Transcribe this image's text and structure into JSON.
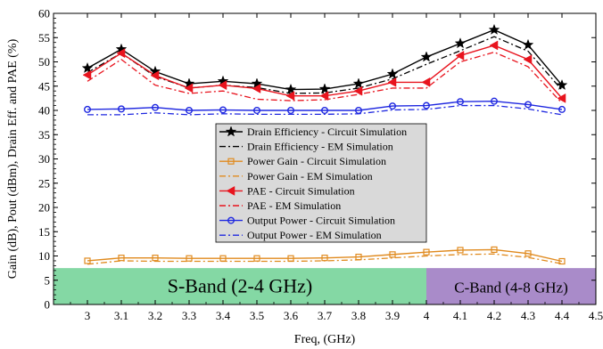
{
  "chart_data": {
    "type": "line",
    "title": "",
    "xlabel": "Freq, (GHz)",
    "ylabel": "Gain (dB), Pout (dBm), Drain Eff. and PAE (%)",
    "xlim": [
      2.9,
      4.5
    ],
    "ylim": [
      0,
      60
    ],
    "x_ticks": [
      "3",
      "3.1",
      "3.2",
      "3.3",
      "3.4",
      "3.5",
      "3.6",
      "3.7",
      "3.8",
      "3.9",
      "4",
      "4.1",
      "4.2",
      "4.3",
      "4.4",
      "4.5"
    ],
    "y_ticks": [
      "0",
      "5",
      "10",
      "15",
      "20",
      "25",
      "30",
      "35",
      "40",
      "45",
      "50",
      "55",
      "60"
    ],
    "grid": false,
    "legend_position": "center",
    "x": [
      3.0,
      3.1,
      3.2,
      3.3,
      3.4,
      3.5,
      3.6,
      3.7,
      3.8,
      3.9,
      4.0,
      4.1,
      4.2,
      4.3,
      4.4
    ],
    "series": [
      {
        "name": "Drain Efficiency - Circuit Simulation",
        "color": "#000000",
        "dash": "solid",
        "marker": "star",
        "values": [
          48.7,
          52.6,
          48.0,
          45.5,
          46.0,
          45.5,
          44.3,
          44.4,
          45.5,
          47.5,
          51.0,
          53.8,
          56.6,
          53.5,
          45.2
        ]
      },
      {
        "name": "Drain Efficiency - EM Simulation",
        "color": "#000000",
        "dash": "dashdot",
        "marker": "none",
        "values": [
          47.8,
          51.8,
          47.0,
          44.6,
          45.2,
          44.7,
          43.5,
          43.6,
          44.6,
          46.5,
          49.5,
          52.3,
          55.2,
          52.2,
          44.2
        ]
      },
      {
        "name": "Power Gain - Circuit Simulation",
        "color": "#e08a1e",
        "dash": "solid",
        "marker": "square",
        "values": [
          9.0,
          9.6,
          9.6,
          9.5,
          9.5,
          9.5,
          9.5,
          9.6,
          9.8,
          10.3,
          10.8,
          11.2,
          11.3,
          10.5,
          8.9
        ]
      },
      {
        "name": "Power Gain - EM Simulation",
        "color": "#e08a1e",
        "dash": "dashdot",
        "marker": "none",
        "values": [
          8.3,
          9.0,
          8.9,
          8.9,
          8.9,
          8.9,
          8.9,
          9.0,
          9.2,
          9.6,
          10.0,
          10.3,
          10.4,
          9.7,
          8.4
        ]
      },
      {
        "name": "PAE - Circuit Simulation",
        "color": "#e8141e",
        "dash": "solid",
        "marker": "triangle-left",
        "values": [
          47.3,
          51.8,
          47.2,
          44.6,
          45.2,
          44.5,
          43.0,
          43.0,
          44.0,
          45.8,
          45.8,
          51.3,
          53.4,
          50.5,
          42.5
        ]
      },
      {
        "name": "PAE - EM Simulation",
        "color": "#e8141e",
        "dash": "dashdot",
        "marker": "none",
        "values": [
          46.0,
          50.5,
          45.2,
          43.5,
          44.0,
          42.3,
          42.0,
          42.2,
          43.3,
          44.6,
          44.6,
          50.0,
          52.0,
          49.0,
          41.5
        ]
      },
      {
        "name": "Output Power - Circuit Simulation",
        "color": "#1f28e0",
        "dash": "solid",
        "marker": "circle",
        "values": [
          40.2,
          40.3,
          40.6,
          40.0,
          40.1,
          40.0,
          40.0,
          40.0,
          40.0,
          40.9,
          41.0,
          41.8,
          41.9,
          41.2,
          40.2
        ]
      },
      {
        "name": "Output Power - EM Simulation",
        "color": "#1f28e0",
        "dash": "dashdot",
        "marker": "none",
        "values": [
          39.1,
          39.1,
          39.5,
          39.1,
          39.3,
          39.2,
          39.2,
          39.2,
          39.3,
          40.1,
          40.2,
          41.0,
          41.0,
          40.3,
          39.1
        ]
      }
    ],
    "annotations": [
      {
        "text": "S-Band (2-4 GHz)",
        "x_range": [
          2.9,
          4.0
        ],
        "y_range": [
          0,
          7.5
        ],
        "color": "#84d8a4"
      },
      {
        "text": "C-Band (4-8 GHz)",
        "x_range": [
          4.0,
          4.5
        ],
        "y_range": [
          0,
          7.5
        ],
        "color": "#a98bc9"
      }
    ]
  }
}
